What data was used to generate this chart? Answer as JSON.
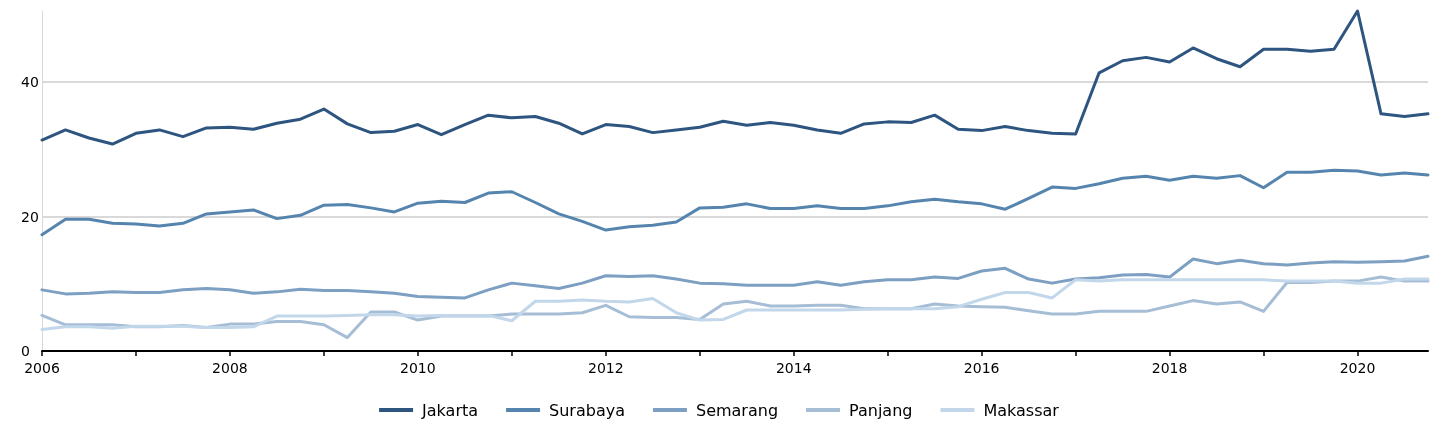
{
  "chart_data": {
    "type": "line",
    "x": [
      2006,
      2006.25,
      2006.5,
      2006.75,
      2007,
      2007.25,
      2007.5,
      2007.75,
      2008,
      2008.25,
      2008.5,
      2008.75,
      2009,
      2009.25,
      2009.5,
      2009.75,
      2010,
      2010.25,
      2010.5,
      2010.75,
      2011,
      2011.25,
      2011.5,
      2011.75,
      2012,
      2012.25,
      2012.5,
      2012.75,
      2013,
      2013.25,
      2013.5,
      2013.75,
      2014,
      2014.25,
      2014.5,
      2014.75,
      2015,
      2015.25,
      2015.5,
      2015.75,
      2016,
      2016.25,
      2016.5,
      2016.75,
      2017,
      2017.25,
      2017.5,
      2017.75,
      2018,
      2018.25,
      2018.5,
      2018.75,
      2019,
      2019.25,
      2019.5,
      2019.75,
      2020,
      2020.25,
      2020.5,
      2020.75
    ],
    "series": [
      {
        "name": "Jakarta",
        "color": "#2d5580",
        "values": [
          31.4,
          32.9,
          31.7,
          30.8,
          32.4,
          32.9,
          31.9,
          33.2,
          33.3,
          33.0,
          33.9,
          34.5,
          36.0,
          33.8,
          32.5,
          32.7,
          33.7,
          32.2,
          33.7,
          35.1,
          34.7,
          34.9,
          33.9,
          32.3,
          33.7,
          33.4,
          32.5,
          32.9,
          33.3,
          34.2,
          33.6,
          34.0,
          33.6,
          32.9,
          32.4,
          33.8,
          34.1,
          34.0,
          35.1,
          33.0,
          32.8,
          33.4,
          32.8,
          32.4,
          32.3,
          41.4,
          43.2,
          43.7,
          43.0,
          45.1,
          43.5,
          42.3,
          44.9,
          44.9,
          44.6,
          44.9,
          50.6,
          35.3,
          34.9,
          35.3
        ]
      },
      {
        "name": "Surabaya",
        "color": "#5585ae",
        "values": [
          17.3,
          19.6,
          19.6,
          19.0,
          18.9,
          18.6,
          19.0,
          20.4,
          20.7,
          21.0,
          19.7,
          20.2,
          21.7,
          21.8,
          21.3,
          20.7,
          22.0,
          22.3,
          22.1,
          23.5,
          23.7,
          22.1,
          20.4,
          19.3,
          18.0,
          18.5,
          18.7,
          19.2,
          21.3,
          21.4,
          21.9,
          21.2,
          21.2,
          21.6,
          21.2,
          21.2,
          21.6,
          22.2,
          22.6,
          22.2,
          21.9,
          21.1,
          22.7,
          24.4,
          24.2,
          24.9,
          25.7,
          26.0,
          25.4,
          26.0,
          25.7,
          26.1,
          24.3,
          26.6,
          26.6,
          26.9,
          26.8,
          26.2,
          26.5,
          26.2
        ]
      },
      {
        "name": "Semarang",
        "color": "#7d9fc2",
        "values": [
          9.1,
          8.5,
          8.6,
          8.8,
          8.7,
          8.7,
          9.1,
          9.3,
          9.1,
          8.6,
          8.8,
          9.2,
          9.0,
          9.0,
          8.8,
          8.6,
          8.1,
          8.0,
          7.9,
          9.1,
          10.1,
          9.7,
          9.3,
          10.1,
          11.2,
          11.1,
          11.2,
          10.7,
          10.1,
          10.0,
          9.8,
          9.8,
          9.8,
          10.3,
          9.8,
          10.3,
          10.6,
          10.6,
          11.0,
          10.8,
          11.9,
          12.3,
          10.7,
          10.1,
          10.7,
          10.9,
          11.3,
          11.4,
          11.0,
          13.7,
          13.0,
          13.5,
          13.0,
          12.8,
          13.1,
          13.3,
          13.2,
          13.3,
          13.4,
          14.1
        ]
      },
      {
        "name": "Panjang",
        "color": "#a6bdd6",
        "values": [
          5.3,
          3.9,
          3.9,
          3.9,
          3.6,
          3.6,
          3.8,
          3.5,
          4.0,
          4.0,
          4.4,
          4.4,
          3.9,
          2.0,
          5.8,
          5.8,
          4.6,
          5.2,
          5.2,
          5.2,
          5.5,
          5.5,
          5.5,
          5.7,
          6.8,
          5.1,
          5.0,
          5.0,
          4.7,
          7.0,
          7.4,
          6.7,
          6.7,
          6.8,
          6.8,
          6.3,
          6.3,
          6.3,
          7.0,
          6.7,
          6.6,
          6.5,
          6.0,
          5.5,
          5.5,
          5.9,
          5.9,
          5.9,
          6.7,
          7.5,
          7.0,
          7.3,
          5.9,
          10.2,
          10.2,
          10.4,
          10.4,
          11.0,
          10.4,
          10.4
        ]
      },
      {
        "name": "Makassar",
        "color": "#c3d7eb",
        "values": [
          3.2,
          3.6,
          3.6,
          3.4,
          3.7,
          3.7,
          3.7,
          3.5,
          3.5,
          3.6,
          5.2,
          5.2,
          5.2,
          5.3,
          5.4,
          5.4,
          5.2,
          5.3,
          5.3,
          5.3,
          4.5,
          7.4,
          7.4,
          7.6,
          7.4,
          7.3,
          7.8,
          5.7,
          4.6,
          4.7,
          6.1,
          6.1,
          6.1,
          6.1,
          6.1,
          6.2,
          6.3,
          6.3,
          6.3,
          6.6,
          7.7,
          8.7,
          8.7,
          7.9,
          10.6,
          10.4,
          10.6,
          10.6,
          10.6,
          10.6,
          10.6,
          10.6,
          10.6,
          10.4,
          10.4,
          10.4,
          10.1,
          10.1,
          10.7,
          10.7
        ]
      }
    ],
    "xlim": [
      2006,
      2020.75
    ],
    "xticks": [
      2006,
      {
        "value": 2007,
        "label": null
      },
      2008,
      {
        "value": 2009,
        "label": null
      },
      2010,
      {
        "value": 2011,
        "label": null
      },
      2012,
      {
        "value": 2013,
        "label": null
      },
      2014,
      {
        "value": 2015,
        "label": null
      },
      2016,
      {
        "value": 2017,
        "label": null
      },
      2018,
      {
        "value": 2019,
        "label": null
      },
      2020
    ],
    "ylim": [
      0,
      50.6
    ],
    "yticks": [
      0,
      20,
      40
    ],
    "grid": "y",
    "legend": "bottom",
    "line_style": "solid"
  }
}
